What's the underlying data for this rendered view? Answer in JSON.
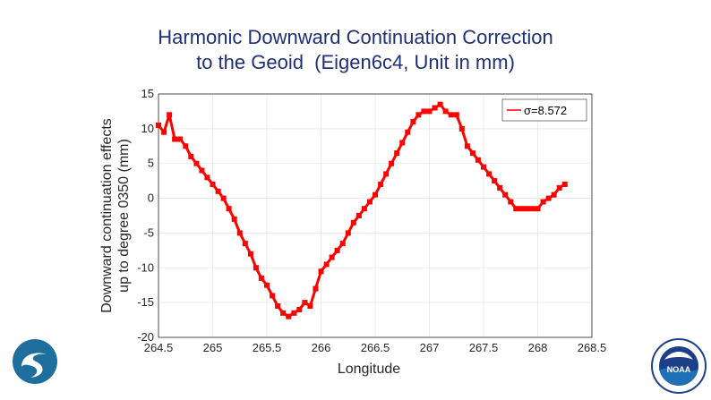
{
  "title": {
    "line1": "Harmonic Downward Continuation Correction",
    "line2": "to the Geoid  (Eigen6c4, Unit in mm)"
  },
  "colors": {
    "title": "#1f2f7a",
    "series": "#ff0000",
    "grid": "#e6e6e6",
    "axis": "#262626",
    "logo_left": "#1f6f9e",
    "logo_right": "#1c3f8a"
  },
  "logos": {
    "left": "agency-swoosh-logo",
    "right": "noaa-logo",
    "right_text": "NOAA"
  },
  "chart_data": {
    "type": "line",
    "title": "",
    "xlabel": "Longitude",
    "ylabel_lines": [
      "Downward continuation effects",
      "up to degree 0350 (mm)"
    ],
    "xlim": [
      264.5,
      268.5
    ],
    "ylim": [
      -20,
      15
    ],
    "xticks": [
      264.5,
      265,
      265.5,
      266,
      266.5,
      267,
      267.5,
      268,
      268.5
    ],
    "yticks": [
      -20,
      -15,
      -10,
      -5,
      0,
      5,
      10,
      15
    ],
    "grid": true,
    "legend_position": "top-right",
    "series": [
      {
        "name": "σ=8.572",
        "x": [
          264.5,
          264.55,
          264.6,
          264.65,
          264.7,
          264.75,
          264.8,
          264.85,
          264.9,
          264.95,
          265.0,
          265.05,
          265.1,
          265.15,
          265.2,
          265.25,
          265.3,
          265.35,
          265.4,
          265.45,
          265.5,
          265.55,
          265.6,
          265.65,
          265.7,
          265.75,
          265.8,
          265.85,
          265.9,
          265.95,
          266.0,
          266.05,
          266.1,
          266.15,
          266.2,
          266.25,
          266.3,
          266.35,
          266.4,
          266.45,
          266.5,
          266.55,
          266.6,
          266.65,
          266.7,
          266.75,
          266.8,
          266.85,
          266.9,
          266.95,
          267.0,
          267.05,
          267.1,
          267.15,
          267.2,
          267.25,
          267.3,
          267.35,
          267.4,
          267.45,
          267.5,
          267.55,
          267.6,
          267.65,
          267.7,
          267.75,
          267.8,
          267.85,
          267.9,
          267.95,
          268.0,
          268.05,
          268.1,
          268.15,
          268.2,
          268.25
        ],
        "y": [
          10.5,
          9.5,
          12,
          8.5,
          8.5,
          7.5,
          6,
          5.0,
          4.0,
          3.0,
          2.0,
          1.0,
          0.0,
          -1.5,
          -3.0,
          -5.0,
          -6.5,
          -8.0,
          -10.0,
          -11.5,
          -12.5,
          -14.0,
          -15.5,
          -16.5,
          -17.0,
          -16.5,
          -16.0,
          -15.0,
          -15.5,
          -13.0,
          -10.5,
          -9.5,
          -8.5,
          -7.5,
          -6.5,
          -5.0,
          -3.5,
          -2.5,
          -1.5,
          -0.5,
          0.5,
          2.0,
          3.5,
          5.0,
          6.5,
          8.0,
          9.5,
          11.0,
          12.0,
          12.5,
          12.5,
          13.0,
          13.5,
          12.5,
          12.0,
          12.0,
          10.0,
          7.5,
          6.5,
          5.5,
          4.5,
          3.5,
          2.5,
          1.5,
          0.5,
          -0.5,
          -1.5,
          -1.5,
          -1.5,
          -1.5,
          -1.5,
          -0.5,
          0.0,
          0.5,
          1.5,
          2.0
        ]
      }
    ]
  }
}
